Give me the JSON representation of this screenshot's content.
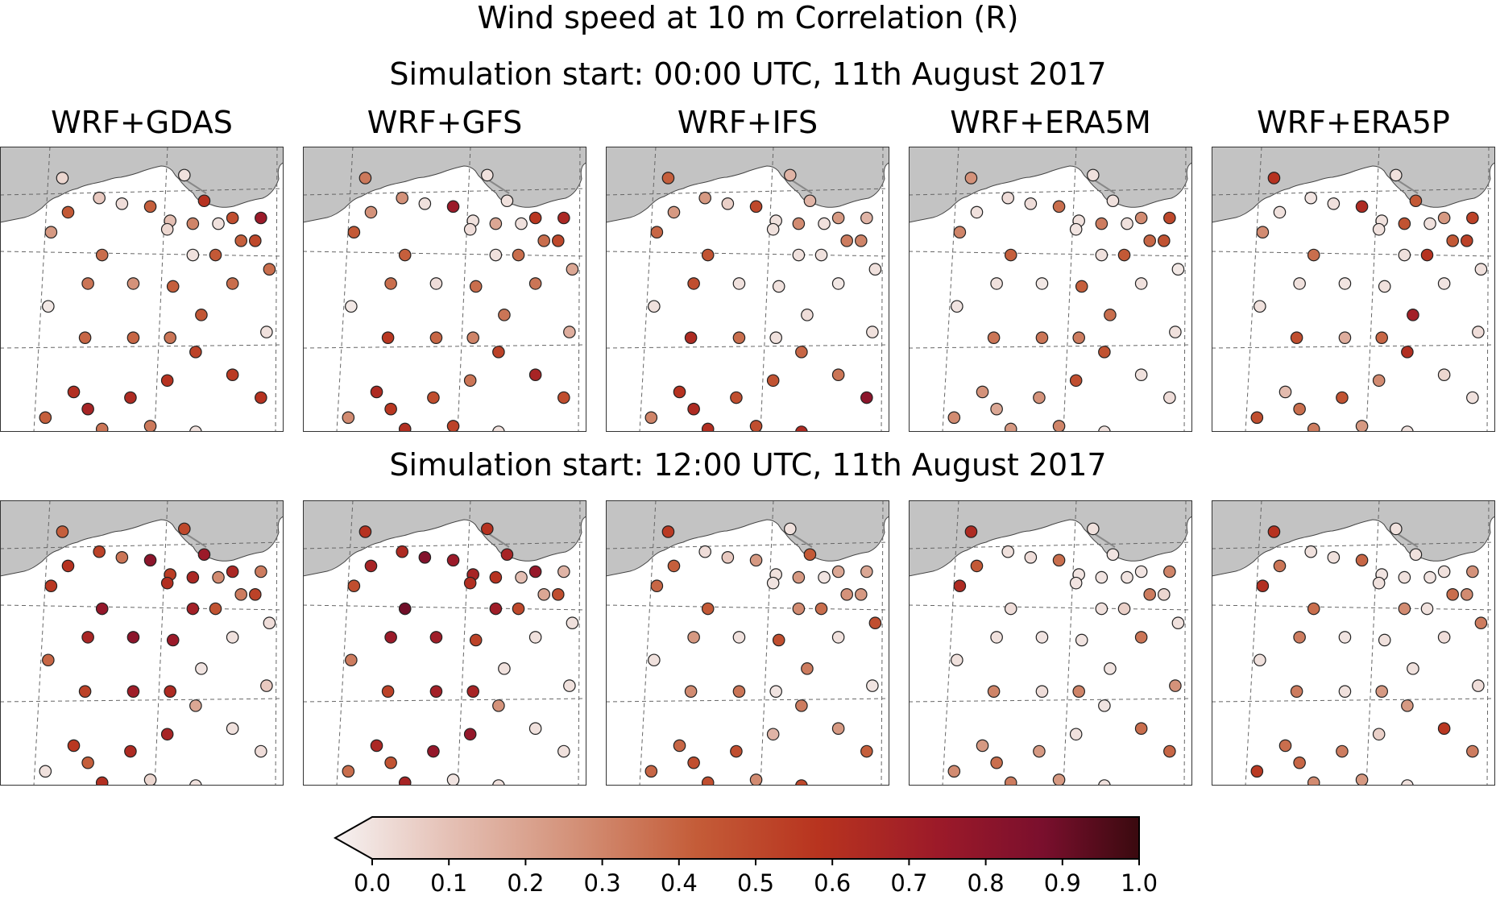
{
  "title": "Wind speed at 10 m Correlation (R)",
  "rows": [
    {
      "subtitle": "Simulation start: 00:00 UTC, 11th August 2017"
    },
    {
      "subtitle": "Simulation start: 12:00 UTC, 11th August 2017"
    }
  ],
  "panels": [
    "WRF+GDAS",
    "WRF+GFS",
    "WRF+IFS",
    "WRF+ERA5M",
    "WRF+ERA5P"
  ],
  "colorbar": {
    "min": 0.0,
    "max": 1.0,
    "ticks": [
      "0.0",
      "0.1",
      "0.2",
      "0.3",
      "0.4",
      "0.5",
      "0.6",
      "0.7",
      "0.8",
      "0.9",
      "1.0"
    ],
    "colors": [
      "#f6f2f2",
      "#e5c1b6",
      "#d39077",
      "#c45c38",
      "#b8341f",
      "#9c1a29",
      "#7a0f2d",
      "#3a0a0f"
    ],
    "extend": "min"
  },
  "chart_data": {
    "type": "scatter",
    "variable": "R",
    "stations": [
      [
        0.22,
        0.11
      ],
      [
        0.35,
        0.18
      ],
      [
        0.53,
        0.21
      ],
      [
        0.65,
        0.1
      ],
      [
        0.72,
        0.19
      ],
      [
        0.76,
        0.38
      ],
      [
        0.82,
        0.25
      ],
      [
        0.9,
        0.33
      ],
      [
        0.18,
        0.3
      ],
      [
        0.24,
        0.23
      ],
      [
        0.43,
        0.2
      ],
      [
        0.6,
        0.26
      ],
      [
        0.68,
        0.27
      ],
      [
        0.77,
        0.27
      ],
      [
        0.85,
        0.33
      ],
      [
        0.92,
        0.25
      ],
      [
        0.36,
        0.38
      ],
      [
        0.59,
        0.29
      ],
      [
        0.68,
        0.38
      ],
      [
        0.95,
        0.43
      ],
      [
        0.31,
        0.48
      ],
      [
        0.47,
        0.48
      ],
      [
        0.61,
        0.49
      ],
      [
        0.82,
        0.48
      ],
      [
        0.17,
        0.56
      ],
      [
        0.71,
        0.59
      ],
      [
        0.94,
        0.65
      ],
      [
        0.3,
        0.67
      ],
      [
        0.47,
        0.67
      ],
      [
        0.6,
        0.67
      ],
      [
        0.69,
        0.72
      ],
      [
        0.26,
        0.86
      ],
      [
        0.46,
        0.88
      ],
      [
        0.59,
        0.82
      ],
      [
        0.82,
        0.8
      ],
      [
        0.31,
        0.92
      ],
      [
        0.92,
        0.88
      ],
      [
        0.16,
        0.95
      ],
      [
        0.36,
        0.99
      ],
      [
        0.53,
        0.98
      ],
      [
        0.69,
        1.0
      ]
    ],
    "r_values": [
      [
        [
          0.08,
          0.12,
          0.42,
          0.05,
          0.58,
          0.44,
          0.48,
          0.5,
          0.26,
          0.44,
          0.06,
          0.15,
          0.32,
          0.05,
          0.42,
          0.72,
          0.38,
          0.08,
          0.05,
          0.38,
          0.36,
          0.28,
          0.42,
          0.38,
          0.03,
          0.45,
          0.05,
          0.4,
          0.4,
          0.36,
          0.52,
          0.6,
          0.62,
          0.58,
          0.55,
          0.66,
          0.58,
          0.42,
          0.36,
          0.35,
          0.05
        ],
        [
          0.35,
          0.28,
          0.72,
          0.05,
          0.05,
          0.38,
          0.56,
          0.5,
          0.44,
          0.28,
          0.05,
          0.05,
          0.22,
          0.05,
          0.38,
          0.64,
          0.42,
          0.06,
          0.05,
          0.22,
          0.38,
          0.06,
          0.38,
          0.36,
          0.03,
          0.36,
          0.2,
          0.56,
          0.4,
          0.32,
          0.52,
          0.62,
          0.48,
          0.36,
          0.66,
          0.56,
          0.48,
          0.3,
          0.6,
          0.52,
          0.05
        ],
        [
          0.42,
          0.26,
          0.5,
          0.18,
          0.18,
          0.05,
          0.26,
          0.32,
          0.4,
          0.26,
          0.1,
          0.05,
          0.3,
          0.05,
          0.34,
          0.18,
          0.46,
          0.05,
          0.05,
          0.05,
          0.48,
          0.05,
          0.05,
          0.03,
          0.05,
          0.06,
          0.05,
          0.62,
          0.38,
          0.05,
          0.4,
          0.58,
          0.48,
          0.46,
          0.36,
          0.62,
          0.78,
          0.32,
          0.6,
          0.48,
          0.62
        ],
        [
          0.28,
          0.06,
          0.38,
          0.05,
          0.05,
          0.44,
          0.3,
          0.46,
          0.32,
          0.05,
          0.06,
          0.05,
          0.34,
          0.05,
          0.4,
          0.5,
          0.42,
          0.04,
          0.05,
          0.03,
          0.05,
          0.03,
          0.42,
          0.05,
          0.04,
          0.38,
          0.05,
          0.36,
          0.36,
          0.34,
          0.46,
          0.28,
          0.28,
          0.48,
          0.05,
          0.22,
          0.06,
          0.3,
          0.26,
          0.32,
          0.05
        ],
        [
          0.58,
          0.04,
          0.62,
          0.05,
          0.44,
          0.58,
          0.26,
          0.52,
          0.3,
          0.05,
          0.05,
          0.05,
          0.46,
          0.05,
          0.44,
          0.52,
          0.38,
          0.05,
          0.05,
          0.05,
          0.05,
          0.04,
          0.05,
          0.04,
          0.05,
          0.68,
          0.06,
          0.48,
          0.2,
          0.4,
          0.6,
          0.16,
          0.46,
          0.3,
          0.08,
          0.38,
          0.05,
          0.48,
          0.34,
          0.26,
          0.05
        ]
      ],
      [
        [
          0.42,
          0.52,
          0.78,
          0.5,
          0.72,
          0.46,
          0.64,
          0.52,
          0.56,
          0.58,
          0.36,
          0.54,
          0.64,
          0.3,
          0.34,
          0.34,
          0.75,
          0.6,
          0.68,
          0.06,
          0.65,
          0.78,
          0.72,
          0.05,
          0.4,
          0.04,
          0.12,
          0.52,
          0.7,
          0.62,
          0.22,
          0.56,
          0.62,
          0.66,
          0.05,
          0.42,
          0.06,
          0.05,
          0.6,
          0.08,
          0.05
        ],
        [
          0.58,
          0.62,
          0.72,
          0.58,
          0.66,
          0.5,
          0.74,
          0.48,
          0.48,
          0.66,
          0.82,
          0.66,
          0.58,
          0.15,
          0.22,
          0.18,
          0.88,
          0.6,
          0.7,
          0.05,
          0.72,
          0.7,
          0.52,
          0.05,
          0.34,
          0.05,
          0.05,
          0.52,
          0.68,
          0.66,
          0.28,
          0.64,
          0.75,
          0.75,
          0.05,
          0.46,
          0.05,
          0.38,
          0.66,
          0.04,
          0.05
        ],
        [
          0.55,
          0.06,
          0.26,
          0.05,
          0.44,
          0.38,
          0.22,
          0.26,
          0.4,
          0.42,
          0.12,
          0.05,
          0.26,
          0.04,
          0.28,
          0.22,
          0.44,
          0.04,
          0.3,
          0.48,
          0.26,
          0.05,
          0.48,
          0.05,
          0.05,
          0.34,
          0.04,
          0.3,
          0.36,
          0.04,
          0.34,
          0.4,
          0.48,
          0.18,
          0.26,
          0.48,
          0.42,
          0.4,
          0.48,
          0.3,
          0.5
        ],
        [
          0.62,
          0.05,
          0.38,
          0.05,
          0.04,
          0.1,
          0.04,
          0.08,
          0.62,
          0.44,
          0.06,
          0.04,
          0.04,
          0.04,
          0.34,
          0.32,
          0.06,
          0.04,
          0.05,
          0.05,
          0.05,
          0.04,
          0.04,
          0.36,
          0.05,
          0.04,
          0.28,
          0.32,
          0.06,
          0.32,
          0.04,
          0.26,
          0.26,
          0.05,
          0.38,
          0.38,
          0.4,
          0.3,
          0.34,
          0.26,
          0.05
        ],
        [
          0.58,
          0.05,
          0.4,
          0.05,
          0.05,
          0.05,
          0.05,
          0.3,
          0.6,
          0.36,
          0.05,
          0.04,
          0.05,
          0.04,
          0.38,
          0.28,
          0.38,
          0.05,
          0.3,
          0.34,
          0.34,
          0.04,
          0.05,
          0.06,
          0.05,
          0.05,
          0.06,
          0.34,
          0.05,
          0.26,
          0.26,
          0.38,
          0.34,
          0.1,
          0.56,
          0.4,
          0.34,
          0.55,
          0.3,
          0.26,
          0.05
        ]
      ]
    ]
  }
}
